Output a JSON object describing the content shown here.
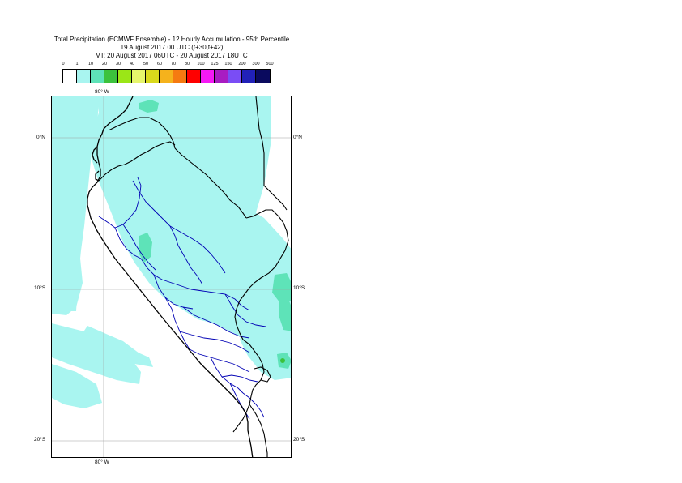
{
  "title": {
    "line1": "Total Precipitation (ECMWF Ensemble) - 12 Hourly Accumulation - 95th Percentile",
    "line2": "19 August 2017 00 UTC (t+30,t+42)",
    "line3": "VT: 20 August 2017 06UTC - 20 August 2017 18UTC"
  },
  "legend": {
    "ticks": [
      "0",
      "1",
      "10",
      "20",
      "30",
      "40",
      "50",
      "60",
      "70",
      "80",
      "100",
      "125",
      "150",
      "200",
      "300",
      "500"
    ],
    "colors": [
      "#ffffff",
      "#a9f5f0",
      "#5ee3b8",
      "#3cc23c",
      "#9be617",
      "#e6f56b",
      "#d9d91c",
      "#f5b21c",
      "#f57a11",
      "#ff0000",
      "#f519f5",
      "#a81cc2",
      "#7a4df5",
      "#2121b8",
      "#0a0a5e"
    ]
  },
  "map": {
    "lon_labels": {
      "top": "80° W",
      "bottom": "80° W"
    },
    "lat_labels": [
      "0°N",
      "10°S",
      "20°S"
    ],
    "colors": {
      "ocean_bg": "#ffffff",
      "precip_light": "#a9f5f0",
      "precip_medium": "#5ee3b8",
      "precip_heavy": "#3cc23c",
      "coastline": "#000000",
      "country_border": "#000000",
      "admin_border": "#0000b4",
      "gridline": "#a0a0a0"
    }
  }
}
